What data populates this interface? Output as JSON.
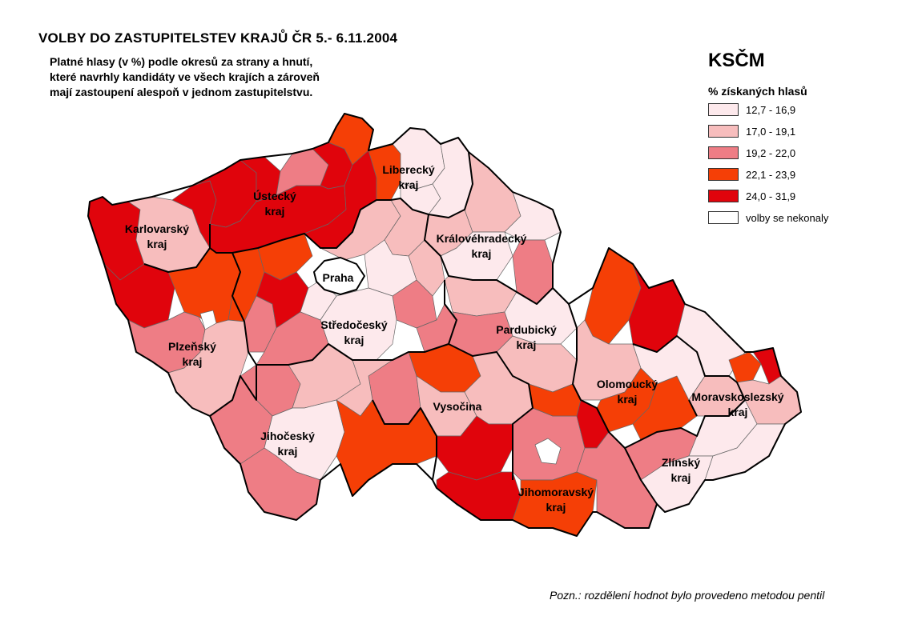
{
  "header": {
    "title": "VOLBY DO ZASTUPITELSTEV KRAJŮ ČR   5.- 6.11.2004",
    "subtitle_lines": [
      "Platné hlasy (v %) podle okresů za strany a hnutí,",
      "které navrhly kandidáty ve všech krajích a zároveň",
      "mají zastoupení alespoň v jednom zastupitelstvu."
    ]
  },
  "legend": {
    "party": "KSČM",
    "subtitle": "% získaných hlasů",
    "classes": [
      {
        "label": "12,7 - 16,9",
        "color": "#fde9ec"
      },
      {
        "label": "17,0 - 19,1",
        "color": "#f7bdbd"
      },
      {
        "label": "19,2 - 22,0",
        "color": "#ee7d85"
      },
      {
        "label": "22,1 - 23,9",
        "color": "#f53f06"
      },
      {
        "label": "24,0 - 31,9",
        "color": "#e0040c"
      },
      {
        "label": "volby se nekonaly",
        "color": "#ffffff"
      }
    ]
  },
  "regions": [
    {
      "label_lines": [
        "Liberecký",
        "kraj"
      ]
    },
    {
      "label_lines": [
        "Ústecký",
        "kraj"
      ]
    },
    {
      "label_lines": [
        "Karlovarský",
        "kraj"
      ]
    },
    {
      "label_lines": [
        "Královéhradecký",
        "kraj"
      ]
    },
    {
      "label_lines": [
        "Praha"
      ]
    },
    {
      "label_lines": [
        "Středočeský",
        "kraj"
      ]
    },
    {
      "label_lines": [
        "Pardubický",
        "kraj"
      ]
    },
    {
      "label_lines": [
        "Plzeňský",
        "kraj"
      ]
    },
    {
      "label_lines": [
        "Olomoucký",
        "kraj"
      ]
    },
    {
      "label_lines": [
        "Moravskoslezský",
        "kraj"
      ]
    },
    {
      "label_lines": [
        "Vysočina"
      ]
    },
    {
      "label_lines": [
        "Jihočeský",
        "kraj"
      ]
    },
    {
      "label_lines": [
        "Zlínský",
        "kraj"
      ]
    },
    {
      "label_lines": [
        "Jihomoravský",
        "kraj"
      ]
    }
  ],
  "note": "Pozn.: rozdělení hodnot bylo provedeno metodou pentil"
}
